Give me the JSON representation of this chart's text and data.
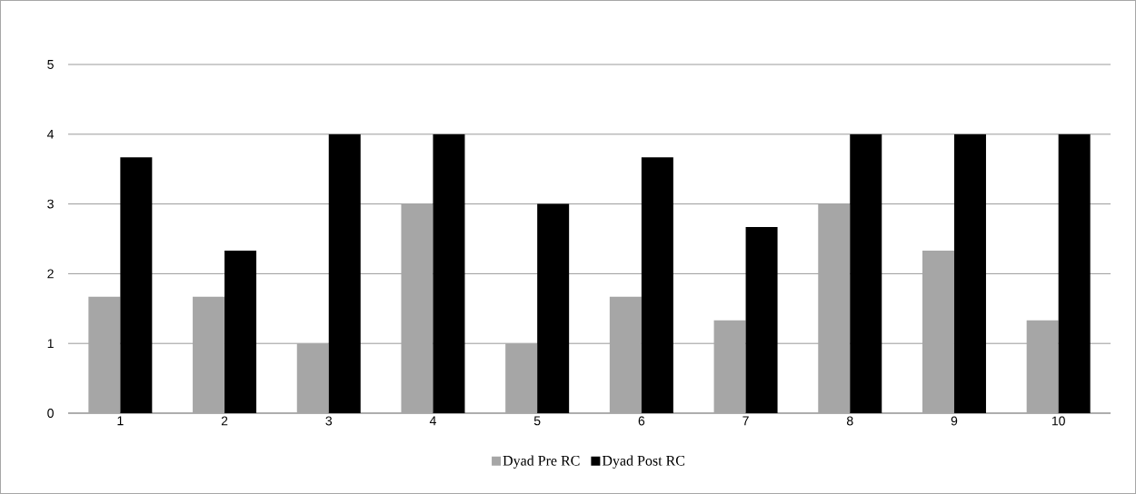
{
  "chart_data": {
    "type": "bar",
    "categories": [
      "1",
      "2",
      "3",
      "4",
      "5",
      "6",
      "7",
      "8",
      "9",
      "10"
    ],
    "series": [
      {
        "name": "Dyad Pre RC",
        "color": "#a6a6a6",
        "values": [
          1.67,
          1.67,
          1,
          3,
          1,
          1.67,
          1.33,
          3,
          2.33,
          1.33
        ]
      },
      {
        "name": "Dyad Post RC",
        "color": "#000000",
        "values": [
          3.67,
          2.33,
          4,
          4,
          3,
          3.67,
          2.67,
          4,
          4,
          4
        ]
      }
    ],
    "ylim": [
      0,
      5
    ],
    "yticks": [
      0,
      1,
      2,
      3,
      4,
      5
    ],
    "grid": "y",
    "legend": "bottom"
  }
}
